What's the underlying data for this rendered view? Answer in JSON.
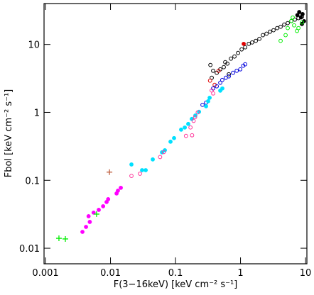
{
  "chart_data": {
    "type": "scatter",
    "xlabel": "F(3−16keV) [keV cm⁻² s⁻¹]",
    "ylabel": "Fbol [keV cm⁻² s⁻¹]",
    "xscale": "log",
    "yscale": "log",
    "xlim": [
      0.00095,
      10.5
    ],
    "ylim": [
      0.0059,
      40
    ],
    "xticks": [
      0.001,
      0.01,
      0.1,
      1,
      10
    ],
    "yticks": [
      0.01,
      0.1,
      1,
      10
    ],
    "series": [
      {
        "color": "#000000",
        "marker": "open",
        "x": [
          0.344,
          0.379,
          0.361,
          0.431,
          0.488,
          0.553,
          0.628,
          0.582,
          0.712,
          0.807,
          0.661,
          0.916,
          1.04,
          1.18,
          1.34,
          1.51,
          1.72,
          1.95,
          2.21,
          2.51,
          2.84,
          3.22,
          3.66,
          4.14,
          4.7,
          5.33,
          6.04,
          6.86,
          7.78,
          8.82
        ],
        "y": [
          4.98,
          4.1,
          3.23,
          3.82,
          4.3,
          4.63,
          5.22,
          5.48,
          6.18,
          6.64,
          3.64,
          7.49,
          8.45,
          9.08,
          10.2,
          10.7,
          11.3,
          12.1,
          13.7,
          14.4,
          15.4,
          16.2,
          17.4,
          18.2,
          19.6,
          20.6,
          22.1,
          23.2,
          24.4,
          25.6
        ]
      },
      {
        "color": "#000000",
        "marker": "filled",
        "x": [
          7.5,
          8,
          8.5,
          9,
          9.5,
          8.8
        ],
        "y": [
          27,
          30,
          25,
          28,
          22,
          20
        ]
      },
      {
        "color": "#e00000",
        "marker": "filled",
        "x": [
          1.12
        ],
        "y": [
          10.2
        ]
      },
      {
        "color": "#e00000",
        "marker": "open",
        "x": [
          0.34,
          0.4,
          0.46
        ],
        "y": [
          2.93,
          2.54,
          4.1
        ]
      },
      {
        "color": "#0000dd",
        "marker": "open",
        "x": [
          0.26,
          0.295,
          0.379,
          0.431,
          0.488,
          0.524,
          0.594,
          0.661,
          0.767,
          0.873,
          0.991,
          1.1,
          1.18
        ],
        "y": [
          1.29,
          1.39,
          2.25,
          2.42,
          2.73,
          3.0,
          3.23,
          3.39,
          3.82,
          4.1,
          4.3,
          4.86,
          5.1
        ]
      },
      {
        "color": "#00e0ff",
        "marker": "filled",
        "x": [
          0.021,
          0.0306,
          0.0348,
          0.0447,
          0.062,
          0.0686,
          0.0838,
          0.095,
          0.122,
          0.139,
          0.157,
          0.178,
          0.202,
          0.23,
          0.295,
          0.318,
          0.335,
          0.488,
          0.526
        ],
        "y": [
          0.171,
          0.141,
          0.141,
          0.203,
          0.258,
          0.277,
          0.37,
          0.418,
          0.557,
          0.598,
          0.676,
          0.8,
          0.9,
          1.02,
          1.23,
          1.46,
          1.64,
          2.09,
          2.25
        ]
      },
      {
        "color": "#ff3399",
        "marker": "open",
        "x": [
          0.021,
          0.0284,
          0.058,
          0.066,
          0.145,
          0.17,
          0.19,
          0.2,
          0.22,
          0.18,
          0.36,
          0.38
        ],
        "y": [
          0.116,
          0.125,
          0.22,
          0.26,
          0.45,
          0.6,
          0.75,
          0.85,
          1.0,
          0.46,
          2.1,
          1.9
        ]
      },
      {
        "color": "#ff00ff",
        "marker": "filled",
        "x": [
          0.0037,
          0.0042,
          0.0048,
          0.0046,
          0.0055,
          0.0066,
          0.0077,
          0.0087,
          0.0092,
          0.0124,
          0.013,
          0.0144
        ],
        "y": [
          0.0174,
          0.0206,
          0.0244,
          0.0296,
          0.0334,
          0.0367,
          0.0415,
          0.0479,
          0.0527,
          0.064,
          0.0703,
          0.0775
        ]
      },
      {
        "color": "#00ee00",
        "marker": "open",
        "x": [
          4.14,
          4.94,
          5.33,
          6.04,
          6.68,
          7.39,
          7.78,
          6.36,
          8.82
        ],
        "y": [
          11.3,
          13.7,
          17.4,
          22.1,
          19.1,
          15.8,
          17.4,
          24.9,
          21.1
        ]
      },
      {
        "color": "#00ee00",
        "marker": "cross",
        "x": [
          0.00161,
          0.00202,
          0.0061
        ],
        "y": [
          0.014,
          0.0137,
          0.0318
        ]
      },
      {
        "color": "#c06040",
        "marker": "cross",
        "x": [
          0.00964
        ],
        "y": [
          0.132
        ]
      }
    ]
  }
}
